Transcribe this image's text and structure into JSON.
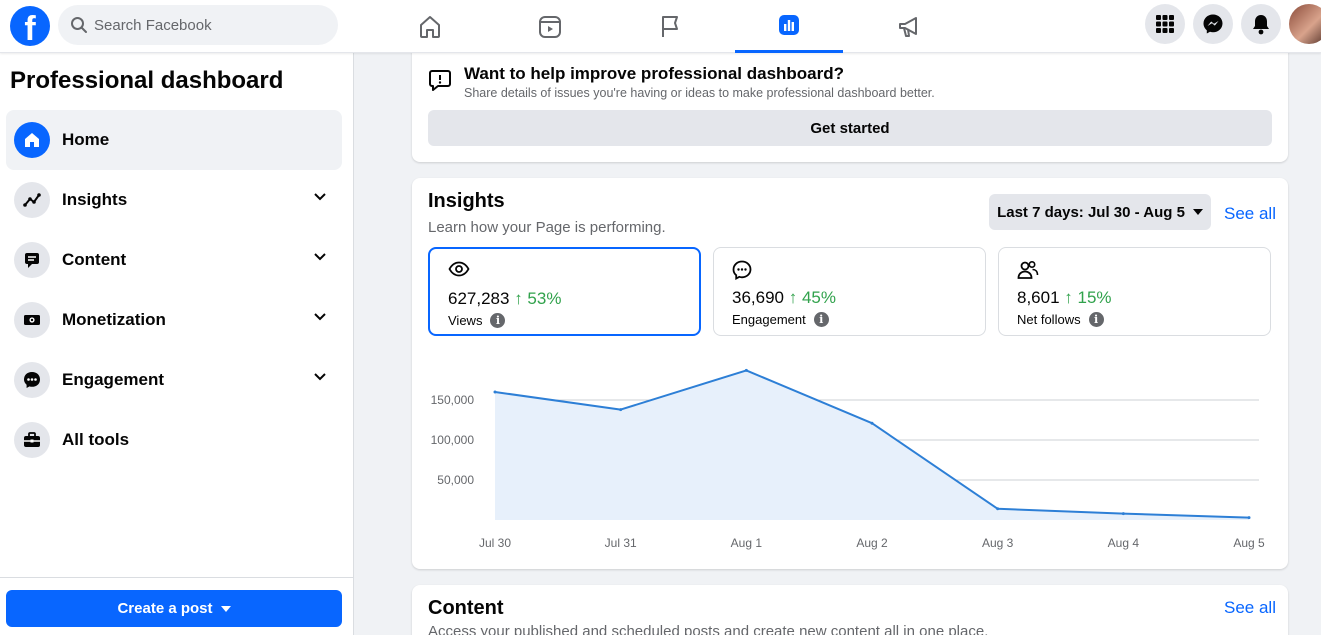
{
  "topbar": {
    "logo_letter": "f",
    "search_placeholder": "Search Facebook",
    "nav": [
      {
        "icon": "home-icon"
      },
      {
        "icon": "video-icon"
      },
      {
        "icon": "flag-icon"
      },
      {
        "icon": "dashboard-icon",
        "active": true
      },
      {
        "icon": "megaphone-icon"
      }
    ],
    "right_buttons": [
      "menu-grid-icon",
      "messenger-icon",
      "bell-icon"
    ]
  },
  "sidebar": {
    "title": "Professional dashboard",
    "items": [
      {
        "label": "Home",
        "icon": "home-icon",
        "active": true,
        "expandable": false
      },
      {
        "label": "Insights",
        "icon": "insights-icon",
        "expandable": true
      },
      {
        "label": "Content",
        "icon": "content-icon",
        "expandable": true
      },
      {
        "label": "Monetization",
        "icon": "money-icon",
        "expandable": true
      },
      {
        "label": "Engagement",
        "icon": "chat-icon",
        "expandable": true
      },
      {
        "label": "All tools",
        "icon": "toolbox-icon",
        "expandable": false
      }
    ],
    "create_post_label": "Create a post"
  },
  "feedback": {
    "title": "Want to help improve professional dashboard?",
    "subtitle": "Share details of issues you're having or ideas to make professional dashboard better.",
    "button": "Get started"
  },
  "insights": {
    "title": "Insights",
    "subtitle": "Learn how your Page is performing.",
    "range_label": "Last 7 days: Jul 30 - Aug 5",
    "see_all": "See all",
    "metrics": [
      {
        "value": "627,283",
        "delta": "↑ 53%",
        "label": "Views",
        "icon": "eye-icon",
        "selected": true
      },
      {
        "value": "36,690",
        "delta": "↑ 45%",
        "label": "Engagement",
        "icon": "chat-bubble-icon",
        "selected": false
      },
      {
        "value": "8,601",
        "delta": "↑ 15%",
        "label": "Net follows",
        "icon": "people-icon",
        "selected": false
      }
    ]
  },
  "chart_data": {
    "type": "area",
    "categories": [
      "Jul 30",
      "Jul 31",
      "Aug 1",
      "Aug 2",
      "Aug 3",
      "Aug 4",
      "Aug 5"
    ],
    "values": [
      160000,
      138000,
      187000,
      121000,
      14000,
      8000,
      3000
    ],
    "yticks": [
      50000,
      100000,
      150000
    ],
    "ytick_labels": [
      "50,000",
      "100,000",
      "150,000"
    ],
    "ylim": [
      0,
      190000
    ],
    "grid": true,
    "line_color": "#2d7fd6",
    "fill_color": "#e7f0fb"
  },
  "content": {
    "title": "Content",
    "subtitle": "Access your published and scheduled posts and create new content all in one place.",
    "see_all": "See all"
  }
}
